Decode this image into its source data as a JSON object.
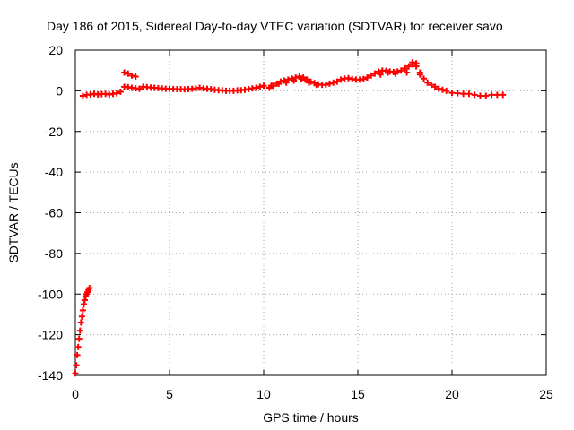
{
  "chart_data": {
    "type": "scatter",
    "title": "Day 186 of 2015, Sidereal Day-to-day VTEC variation (SDTVAR) for receiver savo",
    "xlabel": "GPS time / hours",
    "ylabel": "SDTVAR / TECUs",
    "xlim": [
      0,
      25
    ],
    "ylim": [
      -140,
      20
    ],
    "xticks": [
      0,
      5,
      10,
      15,
      20,
      25
    ],
    "yticks": [
      -140,
      -120,
      -100,
      -80,
      -60,
      -40,
      -20,
      0,
      20
    ],
    "grid": true,
    "marker": "+",
    "series": [
      {
        "name": "SDTVAR",
        "color": "#ff0000",
        "x": [
          0.0,
          0.05,
          0.1,
          0.15,
          0.2,
          0.25,
          0.3,
          0.35,
          0.4,
          0.45,
          0.5,
          0.55,
          0.6,
          0.65,
          0.7,
          0.75,
          0.4,
          0.6,
          0.8,
          1.0,
          1.2,
          1.4,
          1.6,
          1.8,
          2.0,
          2.2,
          2.4,
          2.6,
          2.8,
          3.0,
          3.2,
          2.6,
          2.8,
          3.0,
          3.2,
          3.4,
          3.6,
          3.8,
          4.0,
          4.2,
          4.4,
          4.6,
          4.8,
          5.0,
          5.2,
          5.4,
          5.6,
          5.8,
          6.0,
          6.2,
          6.4,
          6.6,
          6.8,
          7.0,
          7.2,
          7.4,
          7.6,
          7.8,
          8.0,
          8.2,
          8.4,
          8.6,
          8.8,
          9.0,
          9.2,
          9.4,
          9.6,
          9.8,
          10.0,
          10.3,
          10.5,
          10.7,
          10.9,
          11.1,
          11.3,
          11.5,
          11.7,
          11.9,
          12.1,
          12.3,
          12.5,
          12.7,
          12.9,
          13.1,
          13.3,
          13.5,
          13.7,
          13.9,
          14.1,
          14.3,
          14.5,
          14.7,
          14.9,
          15.1,
          15.3,
          15.5,
          15.7,
          15.9,
          16.1,
          16.3,
          16.5,
          16.7,
          16.9,
          17.1,
          17.3,
          17.5,
          17.7,
          17.9,
          18.1,
          18.3,
          18.5,
          18.7,
          18.9,
          19.1,
          19.3,
          19.5,
          19.7,
          10.4,
          10.8,
          11.2,
          11.6,
          12.0,
          12.2,
          12.4,
          12.8,
          16.2,
          16.6,
          17.0,
          17.6,
          17.9,
          18.1,
          18.3,
          20.0,
          20.3,
          20.6,
          20.9,
          21.2,
          21.5,
          21.8,
          22.1,
          22.4,
          22.7
        ],
        "y": [
          -139,
          -135,
          -130,
          -126,
          -122,
          -118,
          -114,
          -111,
          -108,
          -105,
          -103,
          -101,
          -100,
          -99,
          -98,
          -97,
          -2.5,
          -2.0,
          -1.8,
          -1.5,
          -1.8,
          -1.6,
          -1.5,
          -1.8,
          -1.5,
          -1.2,
          -0.5,
          9.0,
          8.5,
          7.5,
          7.0,
          2.0,
          1.8,
          1.5,
          1.2,
          1.0,
          2.0,
          1.8,
          1.6,
          1.5,
          1.3,
          1.2,
          1.0,
          1.0,
          0.9,
          0.8,
          0.8,
          0.7,
          0.8,
          1.0,
          1.2,
          1.5,
          1.2,
          1.0,
          0.8,
          0.5,
          0.3,
          0.2,
          0.0,
          0.0,
          0.0,
          0.2,
          0.3,
          0.5,
          0.8,
          1.2,
          1.5,
          2.0,
          2.5,
          1.5,
          2.5,
          3.5,
          4.5,
          5.0,
          5.5,
          6.0,
          6.5,
          7.0,
          6.5,
          5.5,
          4.5,
          3.8,
          3.2,
          3.0,
          3.0,
          3.5,
          4.0,
          4.5,
          5.5,
          6.0,
          6.2,
          5.8,
          5.5,
          5.5,
          5.8,
          6.5,
          7.5,
          8.5,
          9.5,
          10.0,
          9.8,
          9.5,
          9.2,
          9.5,
          10.0,
          11.0,
          12.0,
          13.0,
          12.0,
          9.0,
          6.0,
          4.0,
          3.0,
          2.0,
          1.0,
          0.5,
          0.0,
          2.5,
          3.5,
          4.0,
          5.0,
          6.0,
          5.5,
          4.0,
          3.0,
          8.0,
          9.0,
          8.5,
          9.0,
          14.0,
          13.5,
          8.0,
          -1.0,
          -1.2,
          -1.5,
          -1.5,
          -2.0,
          -2.5,
          -2.5,
          -2.0,
          -2.0,
          -2.0
        ]
      }
    ]
  }
}
